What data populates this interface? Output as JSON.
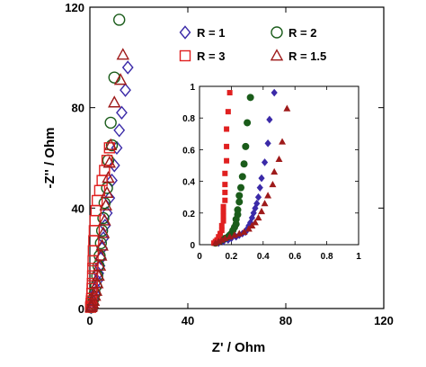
{
  "colors": {
    "R=1": "#3b2aa8",
    "R=2": "#1a5c1a",
    "R=3": "#e02020",
    "R=1.5": "#9e1a1a"
  },
  "chart_data": [
    {
      "type": "scatter",
      "title": "",
      "xlabel": "Z' / Ohm",
      "ylabel": "-Z'' / Ohm",
      "xlim": [
        0,
        120
      ],
      "ylim": [
        0,
        120
      ],
      "xticks": [
        0,
        40,
        80,
        120
      ],
      "yticks": [
        0,
        40,
        80,
        120
      ],
      "legend_position": "top-right",
      "series": [
        {
          "name": "R = 1",
          "marker": "diamond",
          "filled": false,
          "color_key": "R=1",
          "points": [
            [
              0.5,
              0.5
            ],
            [
              0.7,
              1.0
            ],
            [
              1.0,
              2
            ],
            [
              1.3,
              3
            ],
            [
              1.6,
              4
            ],
            [
              2.0,
              6
            ],
            [
              2.5,
              8
            ],
            [
              3.0,
              11
            ],
            [
              3.5,
              14
            ],
            [
              4.0,
              17
            ],
            [
              4.5,
              20
            ],
            [
              5.0,
              24
            ],
            [
              5.5,
              28
            ],
            [
              6.2,
              33
            ],
            [
              7.0,
              38
            ],
            [
              8.0,
              44
            ],
            [
              9.0,
              51
            ],
            [
              10.0,
              57
            ],
            [
              11.0,
              64
            ],
            [
              12.0,
              71
            ],
            [
              13.0,
              78
            ],
            [
              14.5,
              87
            ],
            [
              15.5,
              96
            ]
          ]
        },
        {
          "name": "R = 2",
          "marker": "circle",
          "filled": false,
          "color_key": "R=2",
          "points": [
            [
              0.5,
              0.5
            ],
            [
              0.7,
              1
            ],
            [
              1.0,
              2
            ],
            [
              1.5,
              4
            ],
            [
              2.0,
              6
            ],
            [
              2.5,
              9
            ],
            [
              3.0,
              13
            ],
            [
              3.5,
              17
            ],
            [
              4.0,
              21
            ],
            [
              4.5,
              26
            ],
            [
              5.0,
              31
            ],
            [
              5.5,
              36
            ],
            [
              6.0,
              42
            ],
            [
              7.0,
              48
            ],
            [
              7.5,
              59
            ],
            [
              9.0,
              65
            ],
            [
              8.5,
              74
            ],
            [
              10.0,
              92
            ],
            [
              12.0,
              115
            ]
          ]
        },
        {
          "name": "R = 3",
          "marker": "square",
          "filled": false,
          "color_key": "R=3",
          "points": [
            [
              0.3,
              0.5
            ],
            [
              0.4,
              1
            ],
            [
              0.5,
              2
            ],
            [
              0.6,
              3
            ],
            [
              0.7,
              4
            ],
            [
              0.8,
              6
            ],
            [
              0.9,
              8
            ],
            [
              1.0,
              10
            ],
            [
              1.1,
              13
            ],
            [
              1.2,
              16
            ],
            [
              1.3,
              19
            ],
            [
              1.4,
              23
            ],
            [
              1.6,
              27
            ],
            [
              1.8,
              31
            ],
            [
              2.1,
              35
            ],
            [
              2.5,
              39
            ],
            [
              3.0,
              43
            ],
            [
              4.0,
              47
            ],
            [
              5.0,
              51
            ],
            [
              6.0,
              55
            ],
            [
              7.0,
              59
            ],
            [
              8.0,
              64
            ]
          ]
        },
        {
          "name": "R = 1.5",
          "marker": "triangle",
          "filled": false,
          "color_key": "R=1.5",
          "points": [
            [
              0.5,
              0.5
            ],
            [
              0.8,
              1
            ],
            [
              1.1,
              2
            ],
            [
              1.5,
              3
            ],
            [
              2.0,
              5
            ],
            [
              2.5,
              7
            ],
            [
              3.0,
              10
            ],
            [
              3.5,
              13
            ],
            [
              4.0,
              17
            ],
            [
              4.5,
              21
            ],
            [
              5.0,
              25
            ],
            [
              5.5,
              30
            ],
            [
              6.0,
              35
            ],
            [
              6.5,
              41
            ],
            [
              7.0,
              46
            ],
            [
              7.5,
              52
            ],
            [
              8.0,
              58
            ],
            [
              8.5,
              65
            ],
            [
              10.0,
              82
            ],
            [
              12.5,
              91
            ],
            [
              13.5,
              101
            ]
          ]
        }
      ]
    },
    {
      "type": "scatter",
      "title": "",
      "xlabel": "",
      "ylabel": "",
      "xlim": [
        0,
        1
      ],
      "ylim": [
        0,
        1
      ],
      "xticks": [
        0,
        0.2,
        0.4,
        0.6,
        0.8,
        1
      ],
      "yticks": [
        0,
        0.2,
        0.4,
        0.6,
        0.8,
        1
      ],
      "xtick_labels": [
        "0",
        "0.2",
        "0.4",
        "0.6",
        "0.8",
        "1"
      ],
      "ytick_labels": [
        "0",
        "0.2",
        "0.4",
        "0.6",
        "0.8",
        "1"
      ],
      "series": [
        {
          "name": "R = 1",
          "marker": "diamond",
          "filled": true,
          "color_key": "R=1",
          "points": [
            [
              0.12,
              0.01
            ],
            [
              0.15,
              0.02
            ],
            [
              0.18,
              0.03
            ],
            [
              0.2,
              0.04
            ],
            [
              0.23,
              0.05
            ],
            [
              0.25,
              0.06
            ],
            [
              0.27,
              0.07
            ],
            [
              0.29,
              0.08
            ],
            [
              0.3,
              0.1
            ],
            [
              0.31,
              0.12
            ],
            [
              0.32,
              0.14
            ],
            [
              0.33,
              0.17
            ],
            [
              0.34,
              0.2
            ],
            [
              0.35,
              0.23
            ],
            [
              0.36,
              0.26
            ],
            [
              0.37,
              0.3
            ],
            [
              0.38,
              0.36
            ],
            [
              0.39,
              0.42
            ],
            [
              0.41,
              0.52
            ],
            [
              0.43,
              0.64
            ],
            [
              0.44,
              0.79
            ],
            [
              0.47,
              0.96
            ]
          ]
        },
        {
          "name": "R = 2",
          "marker": "circle",
          "filled": true,
          "color_key": "R=2",
          "points": [
            [
              0.1,
              0.01
            ],
            [
              0.12,
              0.02
            ],
            [
              0.14,
              0.03
            ],
            [
              0.16,
              0.04
            ],
            [
              0.18,
              0.05
            ],
            [
              0.19,
              0.06
            ],
            [
              0.2,
              0.07
            ],
            [
              0.21,
              0.09
            ],
            [
              0.22,
              0.11
            ],
            [
              0.23,
              0.13
            ],
            [
              0.23,
              0.16
            ],
            [
              0.24,
              0.19
            ],
            [
              0.24,
              0.22
            ],
            [
              0.25,
              0.27
            ],
            [
              0.25,
              0.31
            ],
            [
              0.26,
              0.36
            ],
            [
              0.27,
              0.43
            ],
            [
              0.28,
              0.51
            ],
            [
              0.29,
              0.62
            ],
            [
              0.3,
              0.77
            ],
            [
              0.32,
              0.93
            ]
          ]
        },
        {
          "name": "R = 3",
          "marker": "square",
          "filled": true,
          "color_key": "R=3",
          "points": [
            [
              0.09,
              0.01
            ],
            [
              0.1,
              0.02
            ],
            [
              0.11,
              0.03
            ],
            [
              0.12,
              0.05
            ],
            [
              0.13,
              0.07
            ],
            [
              0.14,
              0.09
            ],
            [
              0.14,
              0.12
            ],
            [
              0.15,
              0.15
            ],
            [
              0.15,
              0.18
            ],
            [
              0.15,
              0.21
            ],
            [
              0.15,
              0.24
            ],
            [
              0.16,
              0.28
            ],
            [
              0.16,
              0.33
            ],
            [
              0.16,
              0.38
            ],
            [
              0.16,
              0.45
            ],
            [
              0.17,
              0.53
            ],
            [
              0.17,
              0.62
            ],
            [
              0.17,
              0.73
            ],
            [
              0.18,
              0.84
            ],
            [
              0.19,
              0.96
            ]
          ]
        },
        {
          "name": "R = 1.5",
          "marker": "triangle",
          "filled": true,
          "color_key": "R=1.5",
          "points": [
            [
              0.1,
              0.01
            ],
            [
              0.12,
              0.02
            ],
            [
              0.14,
              0.03
            ],
            [
              0.16,
              0.04
            ],
            [
              0.19,
              0.05
            ],
            [
              0.22,
              0.06
            ],
            [
              0.25,
              0.07
            ],
            [
              0.28,
              0.08
            ],
            [
              0.31,
              0.1
            ],
            [
              0.33,
              0.12
            ],
            [
              0.35,
              0.14
            ],
            [
              0.37,
              0.17
            ],
            [
              0.39,
              0.21
            ],
            [
              0.41,
              0.26
            ],
            [
              0.43,
              0.31
            ],
            [
              0.46,
              0.38
            ],
            [
              0.47,
              0.46
            ],
            [
              0.5,
              0.54
            ],
            [
              0.52,
              0.65
            ],
            [
              0.55,
              0.86
            ]
          ]
        }
      ]
    }
  ]
}
